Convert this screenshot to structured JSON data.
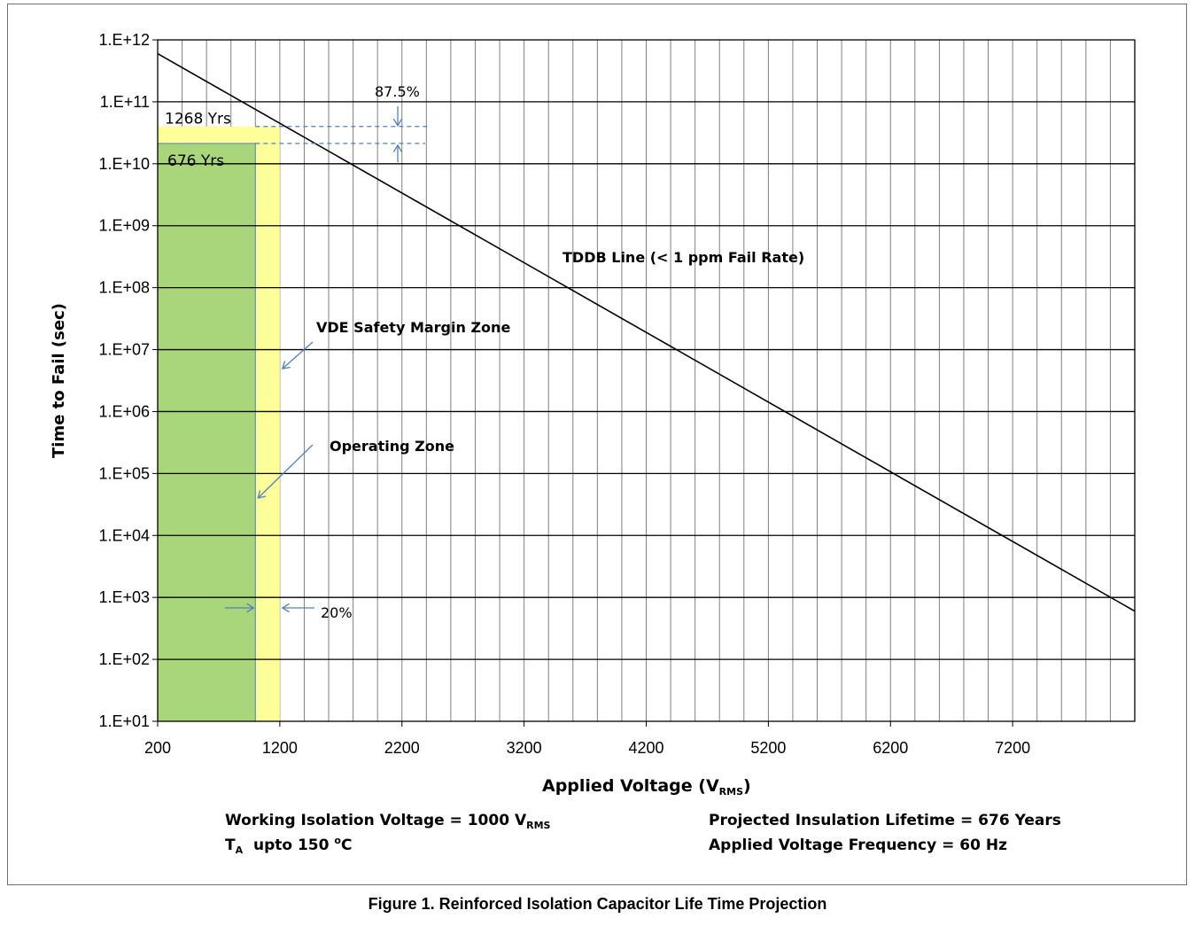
{
  "chart_data": {
    "type": "line",
    "x_axis": {
      "label": "Applied Voltage (V",
      "label_sub": "RMS",
      "label_tail": ")",
      "min": 200,
      "max": 8200,
      "scale": "linear",
      "ticks": [
        200,
        1200,
        2200,
        3200,
        4200,
        5200,
        6200,
        7200
      ],
      "tick_labels": [
        "200",
        "1200",
        "2200",
        "3200",
        "4200",
        "5200",
        "6200",
        "7200"
      ]
    },
    "y_axis": {
      "label": "Time to Fail (sec)",
      "scale": "log",
      "min_exp": 1,
      "max_exp": 12,
      "tick_labels": [
        "1.E+01",
        "1.E+02",
        "1.E+03",
        "1.E+04",
        "1.E+05",
        "1.E+06",
        "1.E+07",
        "1.E+08",
        "1.E+09",
        "1.E+10",
        "1.E+11",
        "1.E+12"
      ]
    },
    "grid": true,
    "series": [
      {
        "name": "TDDB Line (< 1 ppm Fail Rate)",
        "color": "#000000",
        "points": [
          [
            200,
            600000000000
          ],
          [
            8200,
            600
          ]
        ]
      }
    ],
    "zones": [
      {
        "name": "VDE Safety Margin Zone",
        "color": "#ffff99",
        "x_range": [
          200,
          1200
        ],
        "y_range": [
          10,
          40000000000
        ],
        "corner_label": "1268 Yrs"
      },
      {
        "name": "Operating  Zone",
        "color": "#a9d67a",
        "x_range": [
          200,
          1000
        ],
        "y_range": [
          10,
          21300000000
        ],
        "corner_label": "676 Yrs"
      }
    ],
    "annotations": {
      "top_margin_percent": "87.5%",
      "side_margin_percent": "20%",
      "tddb_label": "TDDB Line (< 1 ppm Fail Rate)",
      "vde_label": "VDE Safety Margin Zone",
      "operating_label": "Operating  Zone"
    }
  },
  "notes": {
    "working_voltage": "Working Isolation Voltage = 1000 V",
    "working_voltage_sub": "RMS",
    "temperature_prefix": "T",
    "temperature_sub": "A",
    "temperature_mid": "  upto 150 ",
    "temperature_sup": "o",
    "temperature_tail": "C",
    "lifetime": "Projected Insulation Lifetime =  676 Years",
    "frequency": "Applied Voltage Frequency = 60 Hz"
  },
  "caption": "Figure 1. Reinforced Isolation Capacitor Life Time Projection",
  "colors": {
    "accent_blue": "#4f81bd",
    "grid": "#000000"
  }
}
